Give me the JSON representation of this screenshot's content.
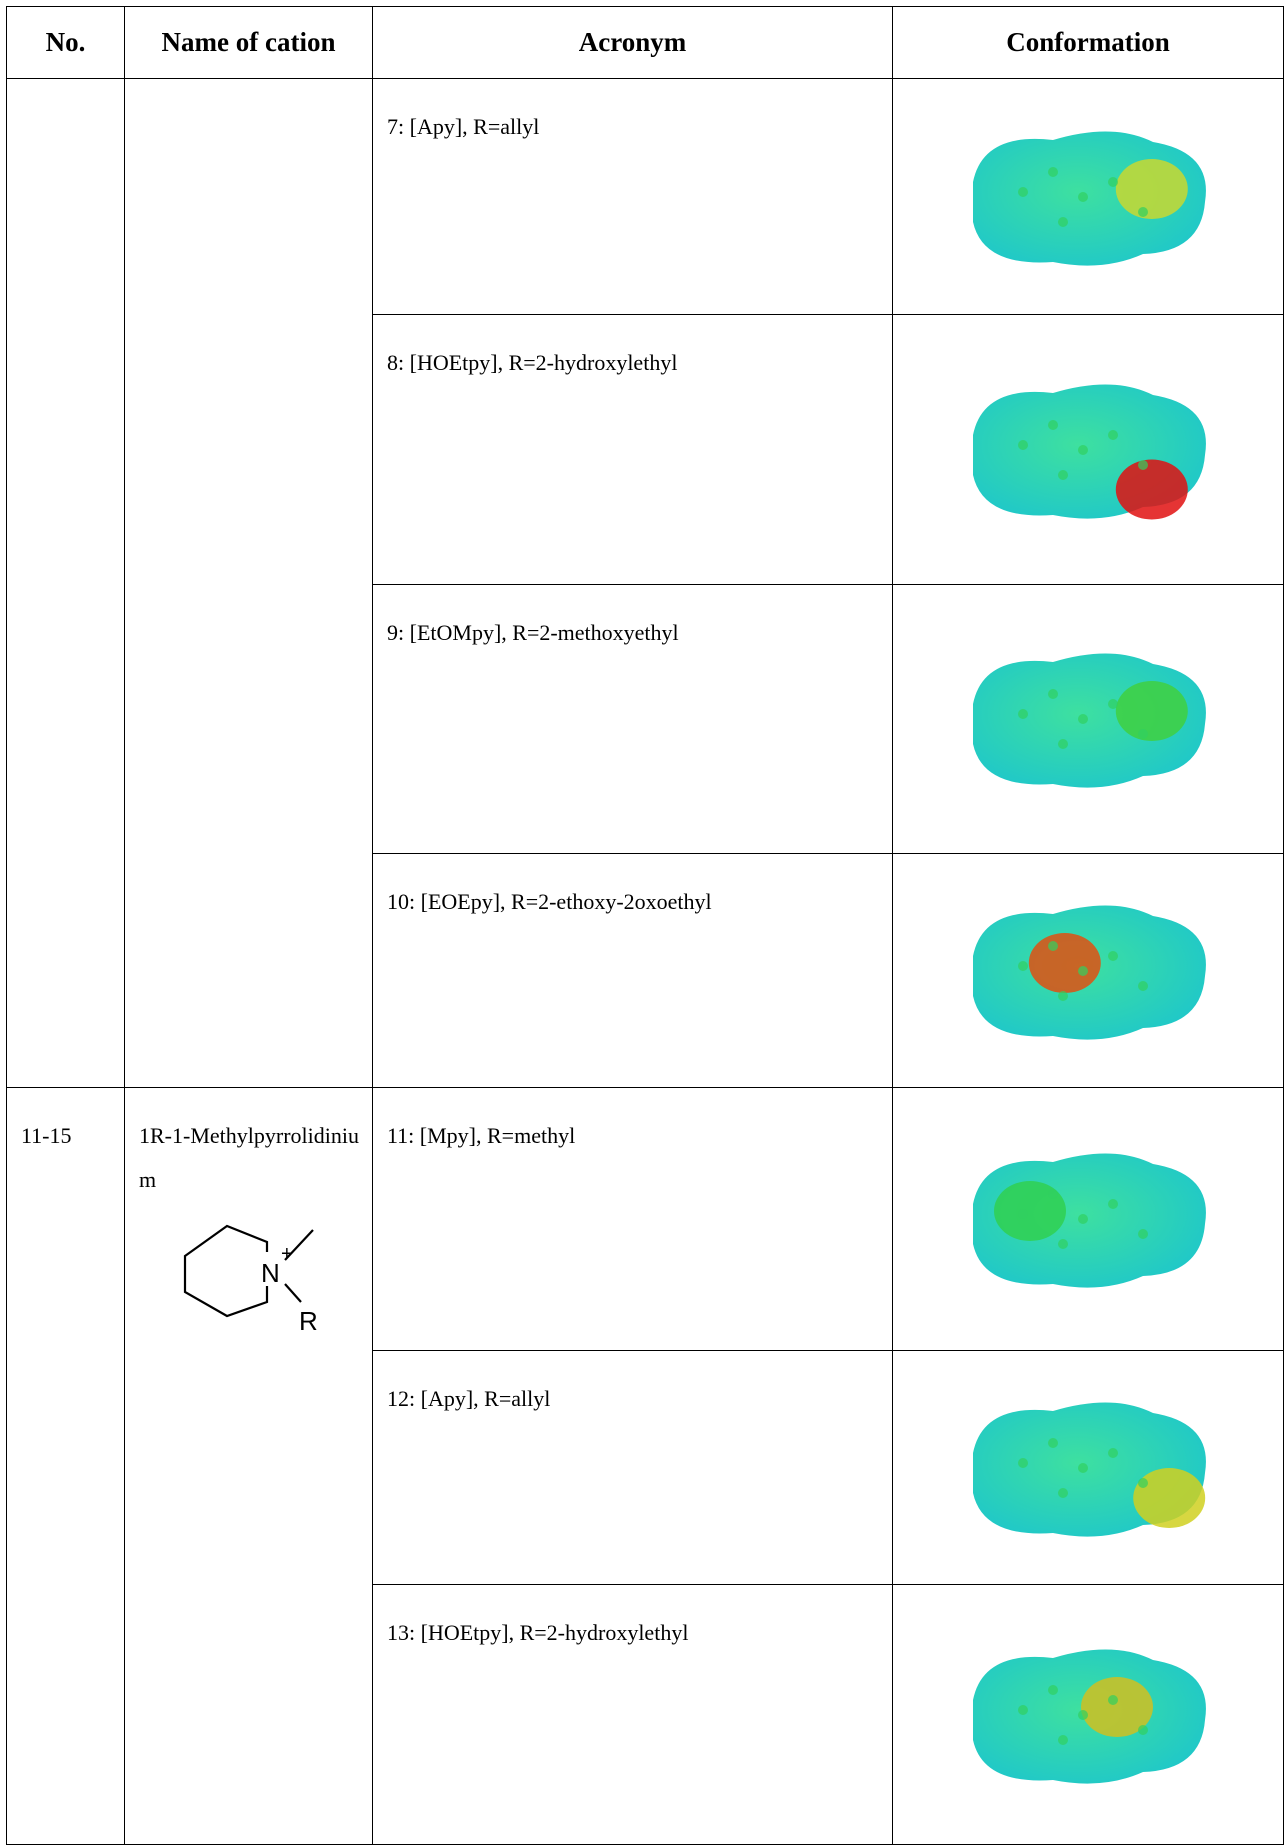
{
  "table": {
    "header": [
      "No.",
      "Name of cation",
      "Acronym",
      "Conformation"
    ],
    "groups": [
      {
        "rows": [
          "7: [Apy], R=allyl",
          "8: [HOEtpy], R=2-hydroxylethyl",
          "9: [EtOMpy], R=2-methoxyethyl",
          "10: [EOEpy], R=2-ethoxy-2oxoethyl"
        ]
      },
      {
        "no": "11-15",
        "name": "1R-1-Methylpyrrolidinium",
        "structure": {
          "atom": "N",
          "charge": "+",
          "substituent": "R"
        },
        "rows": [
          "11: [Mpy], R=methyl",
          "12: [Apy], R=allyl",
          "13: [HOEtpy], R=2-hydroxylethyl"
        ]
      }
    ]
  }
}
